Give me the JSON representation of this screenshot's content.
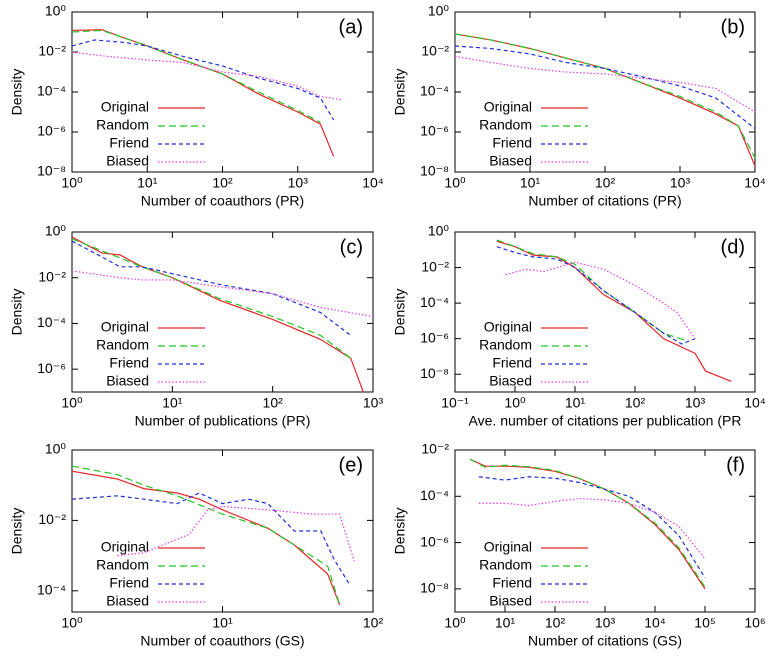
{
  "chart_data": [
    {
      "type": "line",
      "title": "(a)",
      "xlabel": "Number of coauthors (PR)",
      "ylabel": "Density",
      "log_x": true,
      "log_y": true,
      "legend": "lower left",
      "xlim": [
        1,
        10000
      ],
      "xticks": [
        {
          "value": 1,
          "label": "10⁰"
        },
        {
          "value": 10,
          "label": "10¹"
        },
        {
          "value": 100,
          "label": "10²"
        },
        {
          "value": 1000,
          "label": "10³"
        },
        {
          "value": 10000,
          "label": "10⁴"
        }
      ],
      "ylim": [
        1e-08,
        1
      ],
      "yticks": [
        {
          "value": 1e-08,
          "label": "10⁻⁸"
        },
        {
          "value": 1e-06,
          "label": "10⁻⁶"
        },
        {
          "value": 0.0001,
          "label": "10⁻⁴"
        },
        {
          "value": 0.01,
          "label": "10⁻²"
        },
        {
          "value": 1,
          "label": "10⁰"
        }
      ],
      "series": [
        {
          "name": "Original",
          "color": "#e8262a",
          "line_style": "solid",
          "x": [
            1,
            2.5,
            5,
            10,
            30,
            100,
            300,
            1000,
            2000,
            3000
          ],
          "values": [
            0.12,
            0.13,
            0.05,
            0.02,
            0.004,
            0.0008,
            8e-05,
            1e-05,
            2.5e-06,
            6e-08
          ]
        },
        {
          "name": "Random",
          "color": "#22c822",
          "line_style": "dashed",
          "x": [
            1,
            2.5,
            5,
            10,
            30,
            100,
            300,
            1000,
            2000
          ],
          "values": [
            0.1,
            0.12,
            0.05,
            0.02,
            0.004,
            0.0008,
            0.0001,
            1.2e-05,
            3e-06
          ]
        },
        {
          "name": "Friend",
          "color": "#1f2fd8",
          "line_style": "short-dashed",
          "x": [
            1,
            2,
            5,
            10,
            30,
            100,
            300,
            1000,
            2000,
            3000
          ],
          "values": [
            0.02,
            0.04,
            0.03,
            0.02,
            0.006,
            0.002,
            0.0005,
            0.00015,
            5e-05,
            4e-06
          ]
        },
        {
          "name": "Biased",
          "color": "#e63ee6",
          "line_style": "dotted",
          "x": [
            1,
            3,
            10,
            30,
            100,
            300,
            1000,
            2000,
            4000
          ],
          "values": [
            0.01,
            0.006,
            0.004,
            0.003,
            0.001,
            0.0006,
            0.0002,
            6e-05,
            4e-05
          ]
        }
      ]
    },
    {
      "type": "line",
      "title": "(b)",
      "xlabel": "Number of citations (PR)",
      "ylabel": "Density",
      "log_x": true,
      "log_y": true,
      "legend": "lower left",
      "xlim": [
        1,
        10000
      ],
      "xticks": [
        {
          "value": 1,
          "label": "10⁰"
        },
        {
          "value": 10,
          "label": "10¹"
        },
        {
          "value": 100,
          "label": "10²"
        },
        {
          "value": 1000,
          "label": "10³"
        },
        {
          "value": 10000,
          "label": "10⁴"
        }
      ],
      "ylim": [
        1e-08,
        1
      ],
      "yticks": [
        {
          "value": 1e-08,
          "label": "10⁻⁸"
        },
        {
          "value": 1e-06,
          "label": "10⁻⁶"
        },
        {
          "value": 0.0001,
          "label": "10⁻⁴"
        },
        {
          "value": 0.01,
          "label": "10⁻²"
        },
        {
          "value": 1,
          "label": "10⁰"
        }
      ],
      "series": [
        {
          "name": "Original",
          "color": "#e8262a",
          "line_style": "solid",
          "x": [
            1,
            3,
            10,
            30,
            100,
            300,
            1000,
            3000,
            6000,
            10000
          ],
          "values": [
            0.08,
            0.04,
            0.015,
            0.005,
            0.0015,
            0.0003,
            5e-05,
            8e-06,
            2e-06,
            2e-08
          ]
        },
        {
          "name": "Random",
          "color": "#22c822",
          "line_style": "dashed",
          "x": [
            1,
            3,
            10,
            30,
            100,
            300,
            1000,
            3000,
            6000,
            10000
          ],
          "values": [
            0.08,
            0.04,
            0.015,
            0.005,
            0.0015,
            0.0003,
            6e-05,
            1e-05,
            2e-06,
            5e-08
          ]
        },
        {
          "name": "Friend",
          "color": "#1f2fd8",
          "line_style": "short-dashed",
          "x": [
            1,
            3,
            10,
            30,
            100,
            300,
            1000,
            3000,
            10000
          ],
          "values": [
            0.02,
            0.015,
            0.008,
            0.003,
            0.0015,
            0.0006,
            0.0002,
            5e-05,
            1.5e-06
          ]
        },
        {
          "name": "Biased",
          "color": "#e63ee6",
          "line_style": "dotted",
          "x": [
            1,
            3,
            10,
            30,
            100,
            300,
            1000,
            3000,
            10000
          ],
          "values": [
            0.006,
            0.003,
            0.0015,
            0.001,
            0.0008,
            0.0005,
            0.0003,
            0.00015,
            1e-05
          ]
        }
      ]
    },
    {
      "type": "line",
      "title": "(c)",
      "xlabel": "Number of publications (PR)",
      "ylabel": "Density",
      "log_x": true,
      "log_y": true,
      "legend": "lower left",
      "xlim": [
        1,
        1000
      ],
      "xticks": [
        {
          "value": 1,
          "label": "10⁰"
        },
        {
          "value": 10,
          "label": "10¹"
        },
        {
          "value": 100,
          "label": "10²"
        },
        {
          "value": 1000,
          "label": "10³"
        }
      ],
      "ylim": [
        1e-07,
        1
      ],
      "yticks": [
        {
          "value": 1e-06,
          "label": "10⁻⁶"
        },
        {
          "value": 0.0001,
          "label": "10⁻⁴"
        },
        {
          "value": 0.01,
          "label": "10⁻²"
        },
        {
          "value": 1,
          "label": "10⁰"
        }
      ],
      "series": [
        {
          "name": "Original",
          "color": "#e8262a",
          "line_style": "solid",
          "x": [
            1,
            2,
            3,
            5,
            10,
            30,
            100,
            300,
            600,
            800
          ],
          "values": [
            0.6,
            0.12,
            0.1,
            0.03,
            0.01,
            0.001,
            0.00015,
            2e-05,
            3e-06,
            1e-07
          ]
        },
        {
          "name": "Random",
          "color": "#22c822",
          "line_style": "dashed",
          "x": [
            1,
            2,
            5,
            10,
            30,
            100,
            300,
            600
          ],
          "values": [
            0.5,
            0.15,
            0.03,
            0.01,
            0.0012,
            0.0002,
            3e-05,
            3e-06
          ]
        },
        {
          "name": "Friend",
          "color": "#1f2fd8",
          "line_style": "short-dashed",
          "x": [
            1,
            2,
            3,
            5,
            10,
            30,
            100,
            300,
            600
          ],
          "values": [
            0.4,
            0.08,
            0.03,
            0.03,
            0.015,
            0.005,
            0.002,
            0.0003,
            3e-05
          ]
        },
        {
          "name": "Biased",
          "color": "#e63ee6",
          "line_style": "dotted",
          "x": [
            1,
            3,
            5,
            10,
            30,
            100,
            300,
            1000
          ],
          "values": [
            0.02,
            0.01,
            0.008,
            0.008,
            0.004,
            0.002,
            0.0005,
            0.0002
          ]
        }
      ]
    },
    {
      "type": "line",
      "title": "(d)",
      "xlabel": "Ave. number of citations per publication (PR",
      "ylabel": "Density",
      "log_x": true,
      "log_y": true,
      "legend": "lower left",
      "xlim": [
        0.1,
        10000
      ],
      "xticks": [
        {
          "value": 0.1,
          "label": "10⁻¹"
        },
        {
          "value": 1,
          "label": "10⁰"
        },
        {
          "value": 10,
          "label": "10¹"
        },
        {
          "value": 100,
          "label": "10²"
        },
        {
          "value": 1000,
          "label": "10³"
        },
        {
          "value": 10000,
          "label": "10⁴"
        }
      ],
      "ylim": [
        1e-09,
        1
      ],
      "yticks": [
        {
          "value": 1e-08,
          "label": "10⁻⁸"
        },
        {
          "value": 1e-06,
          "label": "10⁻⁶"
        },
        {
          "value": 0.0001,
          "label": "10⁻⁴"
        },
        {
          "value": 0.01,
          "label": "10⁻²"
        },
        {
          "value": 1,
          "label": "10⁰"
        }
      ],
      "series": [
        {
          "name": "Original",
          "color": "#e8262a",
          "line_style": "solid",
          "x": [
            0.5,
            1,
            2,
            5,
            10,
            30,
            100,
            300,
            1000,
            1500,
            4000
          ],
          "values": [
            0.3,
            0.15,
            0.05,
            0.04,
            0.01,
            0.0003,
            3e-05,
            1e-06,
            1.5e-07,
            1.5e-08,
            4e-09
          ]
        },
        {
          "name": "Random",
          "color": "#22c822",
          "line_style": "dashed",
          "x": [
            0.5,
            1,
            2,
            5,
            10,
            30,
            100,
            300,
            700
          ],
          "values": [
            0.35,
            0.15,
            0.06,
            0.04,
            0.015,
            0.0005,
            3e-05,
            2e-06,
            8e-07
          ]
        },
        {
          "name": "Friend",
          "color": "#1f2fd8",
          "line_style": "short-dashed",
          "x": [
            0.5,
            1,
            2,
            5,
            10,
            30,
            100,
            300,
            600,
            1000
          ],
          "values": [
            0.15,
            0.07,
            0.04,
            0.03,
            0.01,
            0.0005,
            3e-05,
            2e-06,
            5e-07,
            1e-06
          ]
        },
        {
          "name": "Biased",
          "color": "#e63ee6",
          "line_style": "dotted",
          "x": [
            0.7,
            1.5,
            3,
            10,
            30,
            100,
            300,
            500,
            1000
          ],
          "values": [
            0.004,
            0.008,
            0.006,
            0.02,
            0.008,
            0.001,
            0.0001,
            3e-05,
            1e-06
          ]
        }
      ]
    },
    {
      "type": "line",
      "title": "(e)",
      "xlabel": "Number of coauthors (GS)",
      "ylabel": "Density",
      "log_x": true,
      "log_y": true,
      "legend": "lower left",
      "xlim": [
        1,
        100
      ],
      "xticks": [
        {
          "value": 1,
          "label": "10⁰"
        },
        {
          "value": 10,
          "label": "10¹"
        },
        {
          "value": 100,
          "label": "10²"
        }
      ],
      "ylim": [
        2.5e-05,
        1
      ],
      "yticks": [
        {
          "value": 0.0001,
          "label": "10⁻⁴"
        },
        {
          "value": 0.01,
          "label": "10⁻²"
        },
        {
          "value": 1,
          "label": "10⁰"
        }
      ],
      "series": [
        {
          "name": "Original",
          "color": "#e8262a",
          "line_style": "solid",
          "x": [
            1,
            2,
            3,
            5,
            7,
            10,
            20,
            30,
            50,
            60
          ],
          "values": [
            0.25,
            0.15,
            0.08,
            0.06,
            0.04,
            0.02,
            0.006,
            0.002,
            0.0003,
            4e-05
          ]
        },
        {
          "name": "Random",
          "color": "#22c822",
          "line_style": "dashed",
          "x": [
            1,
            2,
            3,
            5,
            10,
            20,
            30,
            50,
            60
          ],
          "values": [
            0.35,
            0.2,
            0.1,
            0.05,
            0.015,
            0.006,
            0.002,
            0.0005,
            4e-05
          ]
        },
        {
          "name": "Friend",
          "color": "#1f2fd8",
          "line_style": "short-dashed",
          "x": [
            1,
            2,
            3,
            5,
            7,
            10,
            15,
            20,
            30,
            45,
            55,
            70
          ],
          "values": [
            0.04,
            0.05,
            0.04,
            0.03,
            0.06,
            0.03,
            0.04,
            0.03,
            0.005,
            0.005,
            0.0008,
            0.00015
          ]
        },
        {
          "name": "Biased",
          "color": "#e63ee6",
          "line_style": "dotted",
          "x": [
            2,
            3,
            4,
            6,
            8,
            10,
            20,
            40,
            60,
            75
          ],
          "values": [
            0.001,
            0.0012,
            0.002,
            0.004,
            0.02,
            0.025,
            0.02,
            0.015,
            0.015,
            0.0007
          ]
        }
      ]
    },
    {
      "type": "line",
      "title": "(f)",
      "xlabel": "Number of citations (GS)",
      "ylabel": "Density",
      "log_x": true,
      "log_y": true,
      "legend": "lower left",
      "xlim": [
        1,
        1000000
      ],
      "xticks": [
        {
          "value": 1,
          "label": "10⁰"
        },
        {
          "value": 10,
          "label": "10¹"
        },
        {
          "value": 100,
          "label": "10²"
        },
        {
          "value": 1000,
          "label": "10³"
        },
        {
          "value": 10000,
          "label": "10⁴"
        },
        {
          "value": 100000,
          "label": "10⁵"
        },
        {
          "value": 1000000,
          "label": "10⁶"
        }
      ],
      "ylim": [
        1e-09,
        0.01
      ],
      "yticks": [
        {
          "value": 1e-08,
          "label": "10⁻⁸"
        },
        {
          "value": 1e-06,
          "label": "10⁻⁶"
        },
        {
          "value": 0.0001,
          "label": "10⁻⁴"
        },
        {
          "value": 0.01,
          "label": "10⁻²"
        }
      ],
      "series": [
        {
          "name": "Original",
          "color": "#e8262a",
          "line_style": "solid",
          "x": [
            2,
            4,
            10,
            30,
            100,
            300,
            1000,
            3000,
            10000,
            30000,
            100000
          ],
          "values": [
            0.004,
            0.002,
            0.002,
            0.0018,
            0.0012,
            0.0006,
            0.0002,
            5e-05,
            6e-06,
            5e-07,
            1e-08
          ]
        },
        {
          "name": "Random",
          "color": "#22c822",
          "line_style": "dashed",
          "x": [
            2,
            4,
            10,
            30,
            100,
            300,
            1000,
            3000,
            10000,
            30000,
            100000
          ],
          "values": [
            0.004,
            0.0018,
            0.0022,
            0.0019,
            0.0013,
            0.0006,
            0.0002,
            5e-05,
            7e-06,
            6e-07,
            1.2e-08
          ]
        },
        {
          "name": "Friend",
          "color": "#1f2fd8",
          "line_style": "short-dashed",
          "x": [
            3,
            10,
            30,
            100,
            300,
            1000,
            3000,
            10000,
            30000,
            100000
          ],
          "values": [
            0.0007,
            0.0005,
            0.0007,
            0.0006,
            0.0004,
            0.0002,
            0.0001,
            2e-05,
            2e-06,
            3e-08
          ]
        },
        {
          "name": "Biased",
          "color": "#e63ee6",
          "line_style": "dotted",
          "x": [
            3,
            10,
            30,
            100,
            300,
            1000,
            3000,
            10000,
            30000,
            100000
          ],
          "values": [
            5e-05,
            5e-05,
            4e-05,
            6e-05,
            8e-05,
            7e-05,
            5e-05,
            2e-05,
            5e-06,
            2e-07
          ]
        }
      ]
    }
  ]
}
